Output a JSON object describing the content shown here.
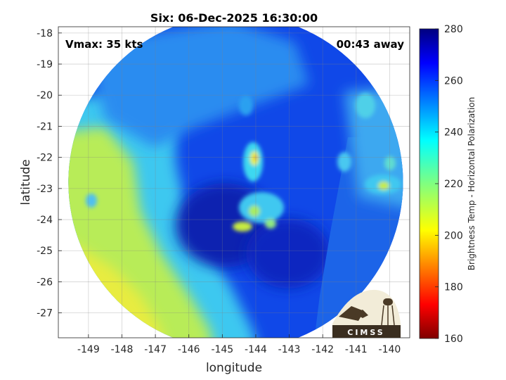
{
  "chart_data": {
    "type": "heatmap",
    "title": "Six: 06-Dec-2025 16:30:00",
    "xlabel": "longitude",
    "ylabel": "latitude",
    "xlim": [
      -149.9,
      -139.4
    ],
    "ylim": [
      -27.8,
      -17.8
    ],
    "xticks": [
      -149,
      -148,
      -147,
      -146,
      -145,
      -144,
      -143,
      -142,
      -141,
      -140
    ],
    "yticks": [
      -18,
      -19,
      -20,
      -21,
      -22,
      -23,
      -24,
      -25,
      -26,
      -27
    ],
    "grid": true,
    "annotations": {
      "vmax": "Vmax: 35 kts",
      "time_away": "00:43 away"
    },
    "colorbar": {
      "label": "Brightness Temp - Horizontal Polarization",
      "range": [
        160,
        280
      ],
      "ticks": [
        160,
        180,
        200,
        220,
        240,
        260,
        280
      ],
      "colormap": "jet"
    },
    "swath": {
      "center_lon": -144.6,
      "center_lat": -22.8,
      "radius_deg": 5.0
    },
    "features": [
      {
        "label": "storm center cold core",
        "lon": -144.4,
        "lat": -24.0,
        "tb": 255
      },
      {
        "label": "warm band west",
        "lon": -148.8,
        "lat": -25.5,
        "tb": 210
      },
      {
        "label": "deep convection",
        "lon": -144.0,
        "lat": -22.0,
        "tb": 215
      },
      {
        "label": "convection east",
        "lon": -140.0,
        "lat": -22.9,
        "tb": 222
      }
    ]
  },
  "logo": {
    "text": "CIMSS"
  }
}
